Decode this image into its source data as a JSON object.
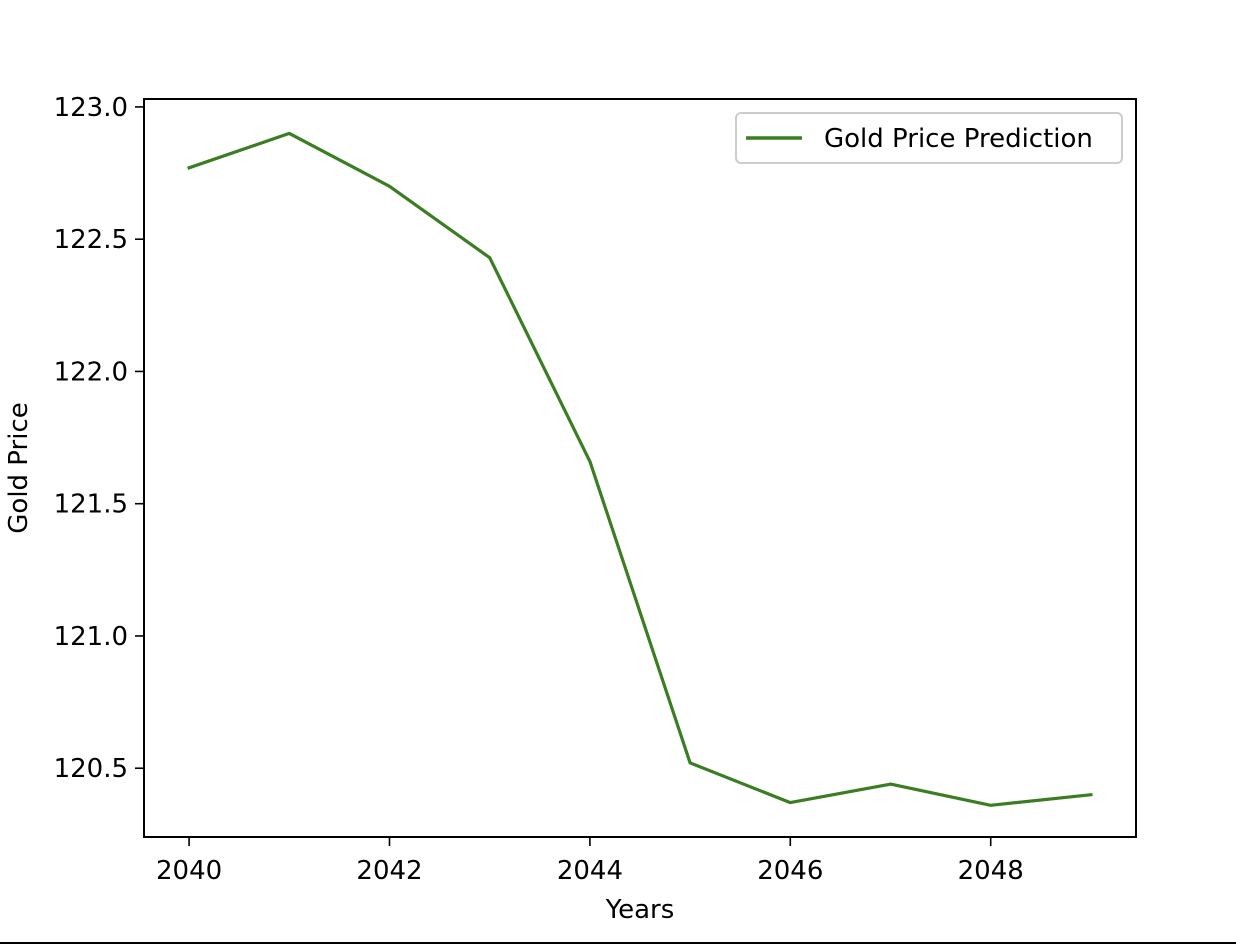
{
  "chart_data": {
    "type": "line",
    "title": "",
    "xlabel": "Years",
    "ylabel": "Gold Price",
    "x": [
      2040,
      2041,
      2042,
      2043,
      2044,
      2045,
      2046,
      2047,
      2048,
      2049
    ],
    "series": [
      {
        "name": "Gold Price Prediction",
        "color": "#3a7d22",
        "values": [
          122.77,
          122.9,
          122.7,
          122.43,
          121.66,
          120.52,
          120.37,
          120.44,
          120.36,
          120.4
        ]
      }
    ],
    "xlim": [
      2039.55,
      2049.45
    ],
    "ylim": [
      120.24,
      123.03
    ],
    "xticks": [
      2040,
      2042,
      2044,
      2046,
      2048
    ],
    "xtick_labels": [
      "2040",
      "2042",
      "2044",
      "2046",
      "2048"
    ],
    "yticks": [
      120.5,
      121.0,
      121.5,
      122.0,
      122.5,
      123.0
    ],
    "ytick_labels": [
      "120.5",
      "121.0",
      "121.5",
      "122.0",
      "122.5",
      "123.0"
    ],
    "grid": false,
    "legend_position": "upper right"
  }
}
